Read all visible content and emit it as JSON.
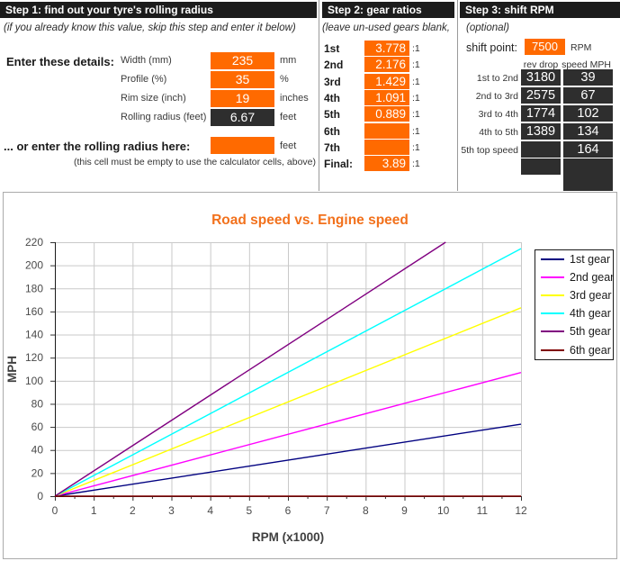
{
  "colors": {
    "orange_input": "#FF6A00",
    "header_bar": "#1C1C1C",
    "dark_output_cell": "#2E2E2E",
    "chart_title": "#F2711C",
    "gridline": "#C9C9C9"
  },
  "step1": {
    "header": "Step 1: find out your tyre's rolling radius",
    "hint": "(if you already know this value, skip this step and enter it below)",
    "enter_label": "Enter these details:",
    "fields": [
      {
        "id": "width",
        "label": "Width (mm)",
        "value": "235",
        "unit": "mm",
        "style": "orange"
      },
      {
        "id": "profile",
        "label": "Profile (%)",
        "value": "35",
        "unit": "%",
        "style": "orange"
      },
      {
        "id": "rim-size",
        "label": "Rim size (inch)",
        "value": "19",
        "unit": "inches",
        "style": "orange"
      },
      {
        "id": "rolling-radius",
        "label": "Rolling radius (feet)",
        "value": "6.67",
        "unit": "feet",
        "style": "dark"
      }
    ],
    "or_label": "... or enter the rolling radius here:",
    "or_value": "",
    "or_unit": "feet",
    "or_note": "(this cell must be empty to use the calculator cells, above)"
  },
  "step2": {
    "header": "Step 2: gear ratios",
    "hint": "(leave un-used gears blank,",
    "ratio_suffix": ":1",
    "gears": [
      {
        "label": "1st",
        "value": "3.778"
      },
      {
        "label": "2nd",
        "value": "2.176"
      },
      {
        "label": "3rd",
        "value": "1.429"
      },
      {
        "label": "4th",
        "value": "1.091"
      },
      {
        "label": "5th",
        "value": "0.889"
      },
      {
        "label": "6th",
        "value": ""
      },
      {
        "label": "7th",
        "value": ""
      },
      {
        "label": "Final:",
        "value": "3.89"
      }
    ]
  },
  "step3": {
    "header": "Step 3: shift RPM",
    "hint": "(optional)",
    "shift_point_label": "shift point:",
    "shift_point_value": "7500",
    "shift_point_unit": "RPM",
    "col_headers": [
      "rev drop",
      "speed MPH"
    ],
    "rows": [
      {
        "label": "1st to 2nd",
        "rev_drop": "3180",
        "speed": "39",
        "rev_cell": true,
        "speed_cell": true
      },
      {
        "label": "2nd to 3rd",
        "rev_drop": "2575",
        "speed": "67",
        "rev_cell": true,
        "speed_cell": true
      },
      {
        "label": "3rd to 4th",
        "rev_drop": "1774",
        "speed": "102",
        "rev_cell": true,
        "speed_cell": true
      },
      {
        "label": "4th to 5th",
        "rev_drop": "1389",
        "speed": "134",
        "rev_cell": true,
        "speed_cell": true
      },
      {
        "label": "5th top speed",
        "rev_drop": "",
        "speed": "164",
        "rev_cell": true,
        "speed_cell": true
      },
      {
        "label": "",
        "rev_drop": "",
        "speed": "",
        "rev_cell": true,
        "speed_cell": true
      },
      {
        "label": "",
        "rev_drop": null,
        "speed": "",
        "rev_cell": false,
        "speed_cell": true
      }
    ]
  },
  "chart_data": {
    "type": "line",
    "title": "Road speed vs. Engine speed",
    "xlabel": "RPM (x1000)",
    "ylabel": "MPH",
    "xlim": [
      0,
      12
    ],
    "ylim": [
      0,
      220
    ],
    "x_ticks": [
      0,
      1,
      2,
      3,
      4,
      5,
      6,
      7,
      8,
      9,
      10,
      11,
      12
    ],
    "x_minor_tick_step": 0.5,
    "y_ticks": [
      0,
      20,
      40,
      60,
      80,
      100,
      120,
      140,
      160,
      180,
      200,
      220
    ],
    "grid": true,
    "legend_position": "right",
    "series": [
      {
        "name": "1st gear",
        "color": "#000080",
        "mph_per_1000rpm": 5.2,
        "mph_at_12000rpm": 62.4
      },
      {
        "name": "2nd gear",
        "color": "#FF00FF",
        "mph_per_1000rpm": 8.93,
        "mph_at_12000rpm": 107.2
      },
      {
        "name": "3rd gear",
        "color": "#FFFF00",
        "mph_per_1000rpm": 13.6,
        "mph_at_12000rpm": 163.2
      },
      {
        "name": "4th gear",
        "color": "#00FFFF",
        "mph_per_1000rpm": 17.87,
        "mph_at_12000rpm": 214.4
      },
      {
        "name": "5th gear",
        "color": "#800080",
        "mph_per_1000rpm": 21.87,
        "mph_at_12000rpm": 262.4
      },
      {
        "name": "6th gear",
        "color": "#800000",
        "mph_per_1000rpm": 0,
        "mph_at_12000rpm": 0
      }
    ]
  }
}
